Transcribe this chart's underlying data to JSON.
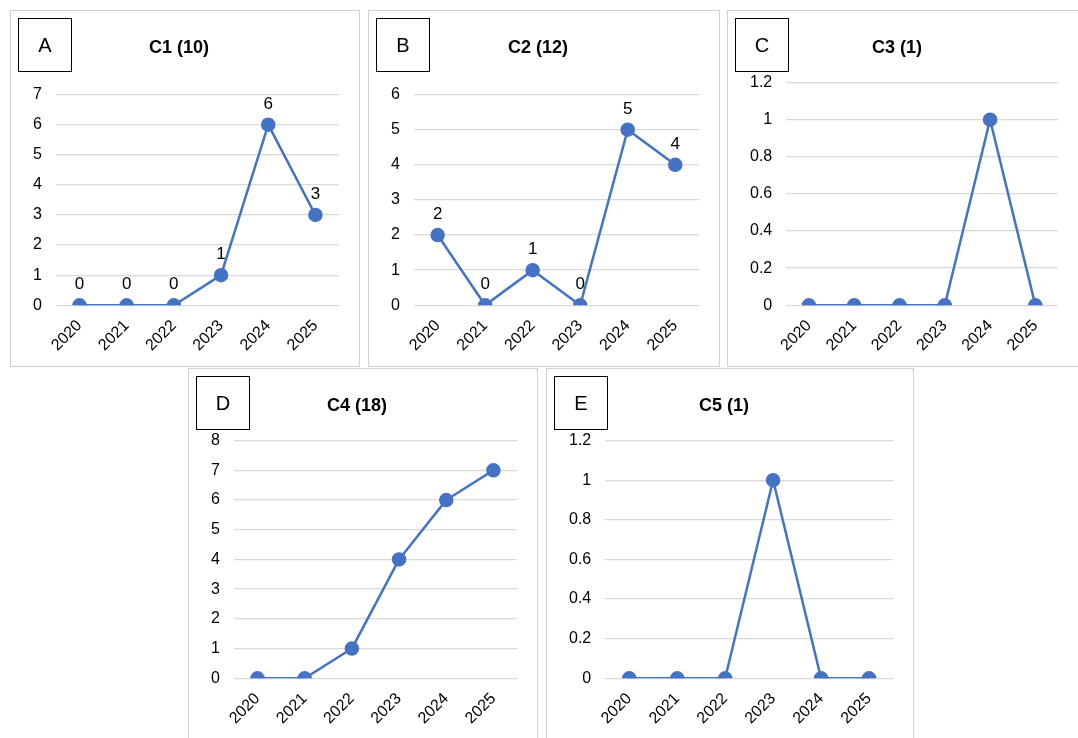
{
  "chart_data": [
    {
      "type": "line",
      "title": "C1 (10)",
      "annotations": [
        "A"
      ],
      "categories": [
        "2020",
        "2021",
        "2022",
        "2023",
        "2024",
        "2025"
      ],
      "series": [
        {
          "color": "#4472c4",
          "values": [
            0,
            0,
            0,
            1,
            6,
            3
          ]
        }
      ],
      "ylim": [
        0,
        7
      ],
      "yticks": [
        0,
        1,
        2,
        3,
        4,
        5,
        6,
        7
      ],
      "grid": "y",
      "marker": "circle",
      "data_labels": true
    },
    {
      "type": "line",
      "title": "C2 (12)",
      "annotations": [
        "B"
      ],
      "categories": [
        "2020",
        "2021",
        "2022",
        "2023",
        "2024",
        "2025"
      ],
      "series": [
        {
          "color": "#4472c4",
          "values": [
            2,
            0,
            1,
            0,
            5,
            4
          ]
        }
      ],
      "ylim": [
        0,
        6
      ],
      "yticks": [
        0,
        1,
        2,
        3,
        4,
        5,
        6
      ],
      "grid": "y",
      "marker": "circle",
      "data_labels": true
    },
    {
      "type": "line",
      "title": "C3 (1)",
      "annotations": [
        "C"
      ],
      "categories": [
        "2020",
        "2021",
        "2022",
        "2023",
        "2024",
        "2025"
      ],
      "series": [
        {
          "color": "#4472c4",
          "values": [
            0,
            0,
            0,
            0,
            1,
            0
          ]
        }
      ],
      "ylim": [
        0,
        1.2
      ],
      "yticks": [
        0,
        0.2,
        0.4,
        0.6,
        0.8,
        1,
        1.2
      ],
      "grid": "y",
      "marker": "circle"
    },
    {
      "type": "line",
      "title": "C4 (18)",
      "annotations": [
        "D"
      ],
      "categories": [
        "2020",
        "2021",
        "2022",
        "2023",
        "2024",
        "2025"
      ],
      "series": [
        {
          "color": "#4472c4",
          "values": [
            0,
            0,
            1,
            4,
            6,
            7
          ]
        }
      ],
      "ylim": [
        0,
        8
      ],
      "yticks": [
        0,
        1,
        2,
        3,
        4,
        5,
        6,
        7,
        8
      ],
      "grid": "y",
      "marker": "circle"
    },
    {
      "type": "line",
      "title": "C5 (1)",
      "annotations": [
        "E"
      ],
      "categories": [
        "2020",
        "2021",
        "2022",
        "2023",
        "2024",
        "2025"
      ],
      "series": [
        {
          "color": "#4472c4",
          "values": [
            0,
            0,
            0,
            1,
            0,
            0
          ]
        }
      ],
      "ylim": [
        0,
        1.2
      ],
      "yticks": [
        0,
        0.2,
        0.4,
        0.6,
        0.8,
        1,
        1.2
      ],
      "grid": "y",
      "marker": "circle"
    }
  ]
}
